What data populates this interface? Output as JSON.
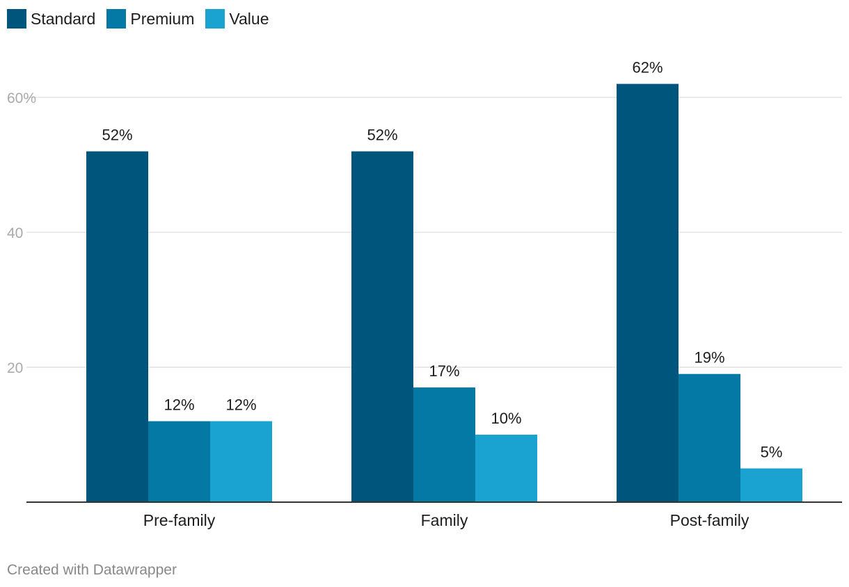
{
  "colors": {
    "standard": "#00557c",
    "premium": "#0479a6",
    "value": "#1aa3d0",
    "grid": "#e3e3e3",
    "tick_text": "#aaaaaa",
    "axis": "#333333"
  },
  "legend": [
    {
      "label": "Standard",
      "color": "#00557c"
    },
    {
      "label": "Premium",
      "color": "#0479a6"
    },
    {
      "label": "Value",
      "color": "#1aa3d0"
    }
  ],
  "footer": {
    "credit": "Created with Datawrapper"
  },
  "chart_data": {
    "type": "bar",
    "categories": [
      "Pre-family",
      "Family",
      "Post-family"
    ],
    "series": [
      {
        "name": "Standard",
        "values": [
          52,
          52,
          62
        ],
        "labels": [
          "52%",
          "52%",
          "62%"
        ]
      },
      {
        "name": "Premium",
        "values": [
          12,
          17,
          19
        ],
        "labels": [
          "12%",
          "17%",
          "19%"
        ]
      },
      {
        "name": "Value",
        "values": [
          12,
          10,
          5
        ],
        "labels": [
          "12%",
          "10%",
          "5%"
        ]
      }
    ],
    "yticks": [
      {
        "value": 20,
        "label": "20"
      },
      {
        "value": 40,
        "label": "40"
      },
      {
        "value": 60,
        "label": "60%"
      }
    ],
    "ylim": [
      0,
      62
    ],
    "grid": true,
    "legend_position": "top-left"
  }
}
